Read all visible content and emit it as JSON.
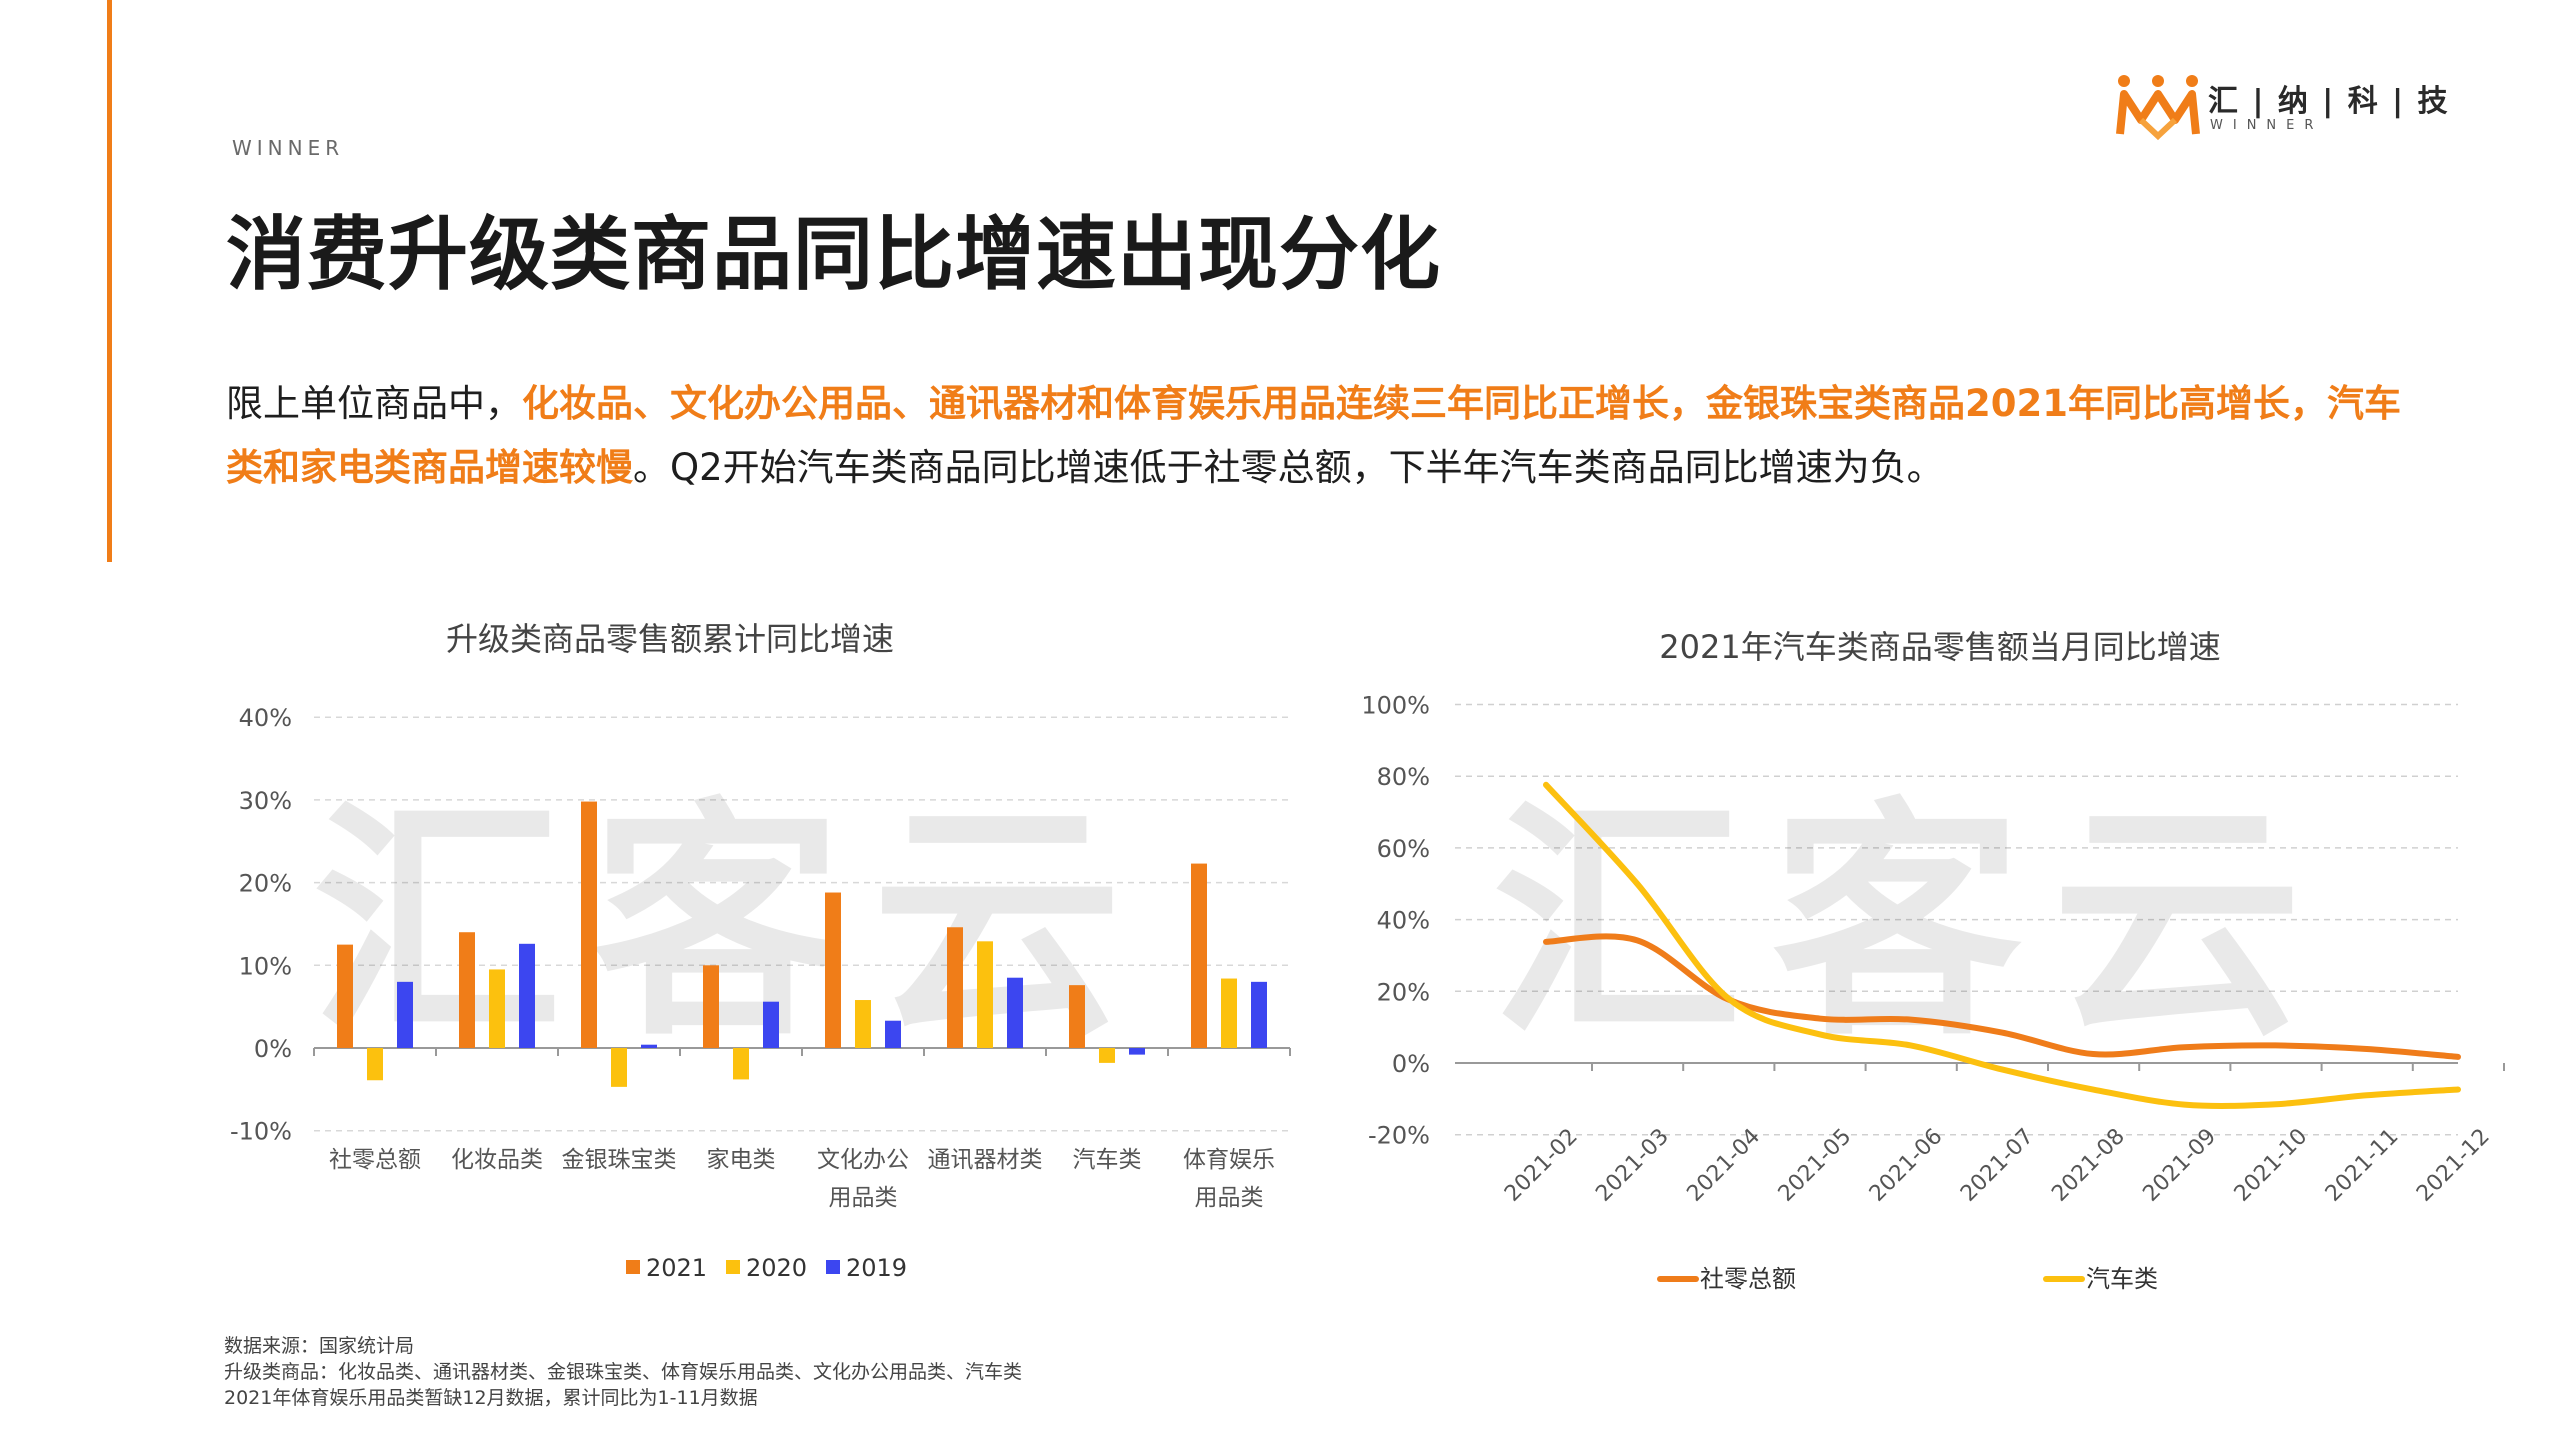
{
  "header": {
    "winner_label": "WINNER",
    "title": "消费升级类商品同比增速出现分化",
    "logo_text": "汇 | 纳 | 科 | 技",
    "logo_sub": "WINNER"
  },
  "intro": {
    "part1": "限上单位商品中，",
    "part2_highlight": "化妆品、文化办公用品、通讯器材和体育娱乐用品连续三年同比正增长，金银珠宝类商品2021年同比高增长，汽车类和家电类商品增速较慢",
    "part3": "。Q2开始汽车类商品同比增速低于社零总额，下半年汽车类商品同比增速为负。"
  },
  "watermark": "汇客云",
  "colors": {
    "accent": "#f07d18",
    "s2021": "#f07d18",
    "s2020": "#fcc10e",
    "s2019": "#3c46f0",
    "line_total": "#ef7c1a",
    "line_auto": "#fcc00f"
  },
  "chart_data": [
    {
      "type": "bar",
      "title": "升级类商品零售额累计同比增速",
      "categories": [
        [
          "社零总额"
        ],
        [
          "化妆品类"
        ],
        [
          "金银珠宝类"
        ],
        [
          "家电类"
        ],
        [
          "文化办公",
          "用品类"
        ],
        [
          "通讯器材类"
        ],
        [
          "汽车类"
        ],
        [
          "体育娱乐",
          "用品类"
        ]
      ],
      "series": [
        {
          "name": "2021",
          "values": [
            12.5,
            14.0,
            29.8,
            10.0,
            18.8,
            14.6,
            7.6,
            22.3
          ]
        },
        {
          "name": "2020",
          "values": [
            -3.9,
            9.5,
            -4.7,
            -3.8,
            5.8,
            12.9,
            -1.8,
            8.4
          ]
        },
        {
          "name": "2019",
          "values": [
            8.0,
            12.6,
            0.4,
            5.6,
            3.3,
            8.5,
            -0.8,
            8.0
          ]
        }
      ],
      "yticks": [
        "40%",
        "30%",
        "20%",
        "10%",
        "0%",
        "-10%"
      ],
      "ylim": [
        -10,
        40
      ],
      "grid": true,
      "legend": "bottom"
    },
    {
      "type": "line",
      "title": "2021年汽车类商品零售额当月同比增速",
      "x": [
        "2021-02",
        "2021-03",
        "2021-04",
        "2021-05",
        "2021-06",
        "2021-07",
        "2021-08",
        "2021-09",
        "2021-10",
        "2021-11",
        "2021-12"
      ],
      "series": [
        {
          "name": "社零总额",
          "values": [
            33.8,
            34.2,
            17.7,
            12.4,
            12.1,
            8.5,
            2.5,
            4.4,
            4.9,
            3.9,
            1.7
          ]
        },
        {
          "name": "汽车类",
          "values": [
            77.6,
            50.0,
            18.0,
            8.0,
            4.9,
            -1.8,
            -7.4,
            -11.6,
            -11.5,
            -9.0,
            -7.4
          ]
        }
      ],
      "yticks": [
        "100%",
        "80%",
        "60%",
        "40%",
        "20%",
        "0%",
        "-20%"
      ],
      "ylim": [
        -20,
        100
      ],
      "grid": true,
      "legend": "bottom"
    }
  ],
  "source": {
    "line1": "数据来源：国家统计局",
    "line2": "升级类商品：化妆品类、通讯器材类、金银珠宝类、体育娱乐用品类、文化办公用品类、汽车类",
    "line3": "2021年体育娱乐用品类暂缺12月数据，累计同比为1-11月数据"
  }
}
